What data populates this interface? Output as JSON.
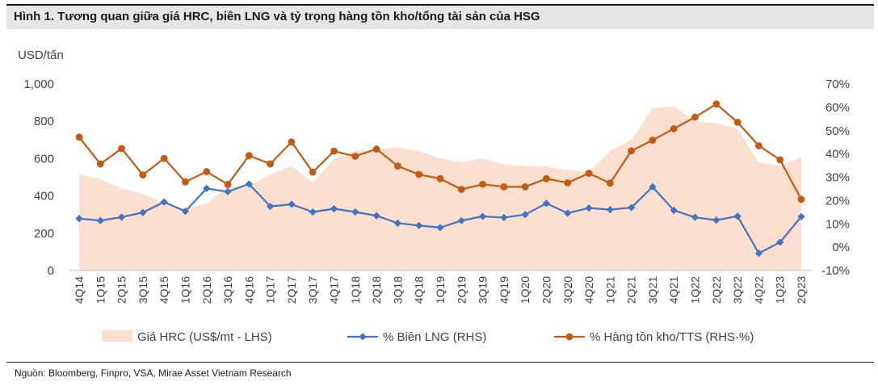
{
  "title": "Hình 1. Tương quan giữa giá HRC, biên LNG và tỷ trọng hàng tồn kho/tổng tài sản của HSG",
  "source": "Nguồn: Bloomberg, Finpro, VSA, Mirae Asset Vietnam Research",
  "chart_data": {
    "type": "area",
    "ylabel": "USD/tấn",
    "ylim": [
      0,
      1000
    ],
    "y_ticks": [
      "0",
      "200",
      "400",
      "600",
      "800",
      "1,000"
    ],
    "y2lim": [
      -10,
      70
    ],
    "y2_ticks": [
      "-10%",
      "0%",
      "10%",
      "20%",
      "30%",
      "40%",
      "50%",
      "60%",
      "70%"
    ],
    "categories": [
      "4Q14",
      "1Q15",
      "2Q15",
      "3Q15",
      "4Q15",
      "1Q16",
      "2Q16",
      "3Q16",
      "4Q16",
      "1Q17",
      "2Q17",
      "3Q17",
      "4Q17",
      "1Q18",
      "2Q18",
      "3Q18",
      "4Q18",
      "1Q19",
      "2Q19",
      "3Q19",
      "4Q19",
      "1Q20",
      "2Q20",
      "3Q20",
      "4Q20",
      "1Q21",
      "2Q21",
      "3Q21",
      "4Q21",
      "1Q22",
      "2Q22",
      "3Q22",
      "4Q22",
      "1Q23",
      "2Q23"
    ],
    "legend_position": "bottom",
    "grid": false,
    "series": [
      {
        "name": "Giá HRC (US$/mt - LHS)",
        "type": "area",
        "axis": "left",
        "color": "#fbe0d0",
        "values": [
          515,
          490,
          440,
          410,
          360,
          330,
          360,
          450,
          450,
          515,
          560,
          470,
          600,
          640,
          650,
          660,
          640,
          600,
          580,
          600,
          570,
          560,
          555,
          540,
          530,
          640,
          700,
          870,
          880,
          800,
          790,
          760,
          580,
          560,
          610
        ]
      },
      {
        "name": "% Biên LNG (RHS)",
        "type": "line",
        "axis": "right",
        "color": "#4472c4",
        "marker": "diamond",
        "values": [
          12.3,
          11.4,
          12.9,
          14.9,
          19.4,
          15.4,
          25.2,
          23.8,
          27.1,
          17.5,
          18.4,
          15.1,
          16.5,
          15.1,
          13.5,
          10.3,
          9.3,
          8.4,
          11.4,
          13.2,
          12.7,
          14.0,
          18.8,
          14.6,
          16.8,
          16.1,
          17.0,
          25.9,
          15.8,
          12.8,
          11.6,
          13.3,
          -2.6,
          2.1,
          13.1
        ]
      },
      {
        "name": "% Hàng tồn kho/TTS (RHS-%)",
        "type": "line",
        "axis": "right",
        "color": "#c55a11",
        "marker": "circle",
        "values": [
          47.2,
          35.7,
          42.3,
          31.0,
          38.1,
          28.0,
          32.4,
          26.9,
          39.3,
          35.7,
          45.1,
          32.2,
          41.2,
          39.0,
          42.1,
          34.8,
          31.2,
          29.4,
          24.8,
          27.0,
          25.9,
          25.9,
          29.4,
          27.6,
          31.7,
          27.5,
          41.3,
          45.9,
          50.8,
          55.8,
          61.4,
          53.6,
          43.5,
          37.5,
          20.5
        ]
      }
    ]
  }
}
